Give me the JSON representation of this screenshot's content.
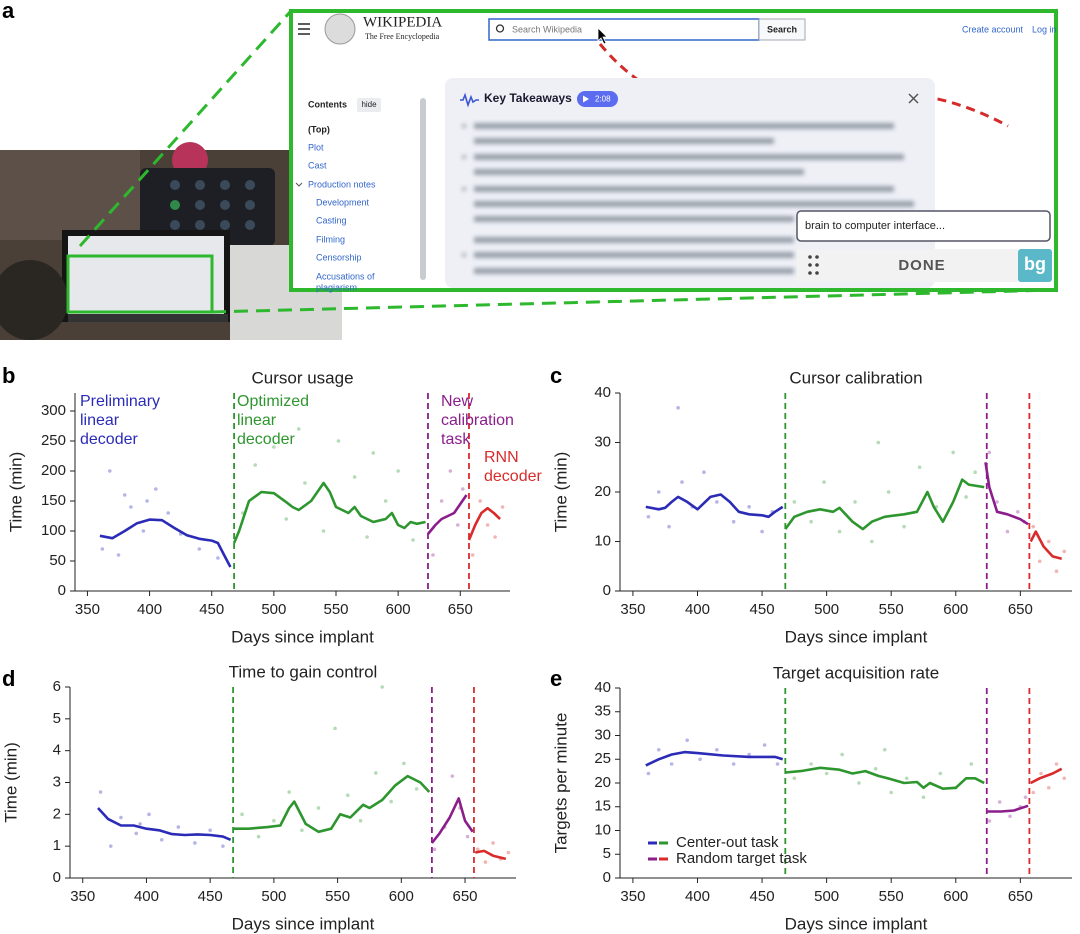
{
  "panel_a": {
    "label": "a",
    "wiki_title": "WIKIPEDIA",
    "wiki_tagline": "The Free Encyclopedia",
    "search_placeholder": "Search Wikipedia",
    "search_button": "Search",
    "create_account": "Create account",
    "log_in": "Log in",
    "contents_title": "Contents",
    "contents_hide": "hide",
    "contents_items": [
      "(Top)",
      "Plot",
      "Cast",
      "Production notes",
      "Development",
      "Casting",
      "Filming",
      "Censorship",
      "Accusations of",
      "plagiarism"
    ],
    "takeaways_title": "Key Takeaways",
    "audio_duration": "2:08",
    "input_text": "brain to computer interface...",
    "done_button": "DONE",
    "extension_badge": "bg"
  },
  "chart_data": [
    {
      "type": "line",
      "panel_label": "b",
      "title": "Cursor usage",
      "x_label": "Days since implant",
      "y_label": "Time (min)",
      "xlim": [
        340,
        690
      ],
      "xticks": [
        350,
        400,
        450,
        500,
        550,
        600,
        650
      ],
      "ylim": [
        0,
        330
      ],
      "yticks": [
        0,
        50,
        100,
        150,
        200,
        250,
        300
      ],
      "vlines": [
        {
          "x": 468,
          "color": "#2e962e"
        },
        {
          "x": 624,
          "color": "#8b1e8b"
        },
        {
          "x": 657,
          "color": "#d92b2b"
        }
      ],
      "annotations": [
        {
          "lines": [
            "Preliminary",
            "linear",
            "decoder"
          ],
          "color": "#2b2bb8"
        },
        {
          "lines": [
            "Optimized",
            "linear",
            "decoder"
          ],
          "color": "#2e962e"
        },
        {
          "lines": [
            "New",
            "calibration",
            "task"
          ],
          "color": "#8b1e8b"
        },
        {
          "lines": [
            "RNN",
            "decoder"
          ],
          "color": "#d92b2b"
        }
      ],
      "series": [
        {
          "color": "#2b2bb8",
          "x": [
            360,
            370,
            380,
            390,
            400,
            410,
            420,
            430,
            440,
            450,
            455,
            460,
            465
          ],
          "values": [
            92,
            88,
            100,
            113,
            119,
            118,
            105,
            93,
            87,
            84,
            80,
            60,
            40
          ]
        },
        {
          "color": "#2e962e",
          "x": [
            468,
            472,
            480,
            490,
            500,
            510,
            515,
            520,
            530,
            540,
            545,
            550,
            560,
            565,
            570,
            580,
            590,
            595,
            600,
            605,
            610,
            615,
            622
          ],
          "values": [
            80,
            100,
            150,
            165,
            163,
            148,
            140,
            135,
            150,
            180,
            165,
            140,
            130,
            140,
            125,
            115,
            120,
            130,
            110,
            105,
            115,
            112,
            115
          ]
        },
        {
          "color": "#8b1e8b",
          "x": [
            624,
            630,
            635,
            640,
            645,
            650,
            655
          ],
          "values": [
            95,
            110,
            120,
            125,
            130,
            145,
            160
          ]
        },
        {
          "color": "#d92b2b",
          "x": [
            657,
            662,
            667,
            672,
            677,
            682
          ],
          "values": [
            85,
            110,
            130,
            138,
            130,
            120
          ]
        }
      ],
      "points": [
        {
          "color": "#2b2bb8",
          "x": [
            362,
            368,
            375,
            380,
            385,
            395,
            398,
            405,
            415,
            425,
            440,
            455
          ],
          "values": [
            70,
            200,
            60,
            160,
            140,
            100,
            150,
            170,
            130,
            95,
            70,
            55
          ]
        },
        {
          "color": "#2e962e",
          "x": [
            475,
            485,
            500,
            510,
            520,
            525,
            540,
            552,
            565,
            575,
            580,
            590,
            600,
            612
          ],
          "values": [
            130,
            210,
            240,
            120,
            270,
            180,
            100,
            250,
            190,
            90,
            230,
            150,
            200,
            85
          ]
        },
        {
          "color": "#8b1e8b",
          "x": [
            628,
            635,
            642,
            648,
            652
          ],
          "values": [
            60,
            150,
            200,
            110,
            170
          ]
        },
        {
          "color": "#d92b2b",
          "x": [
            660,
            666,
            672,
            678,
            684
          ],
          "values": [
            60,
            150,
            110,
            90,
            140
          ]
        }
      ]
    },
    {
      "type": "line",
      "panel_label": "c",
      "title": "Cursor calibration",
      "x_label": "Days since implant",
      "y_label": "Time (min)",
      "xlim": [
        340,
        690
      ],
      "xticks": [
        350,
        400,
        450,
        500,
        550,
        600,
        650
      ],
      "ylim": [
        0,
        40
      ],
      "yticks": [
        0,
        10,
        20,
        30,
        40
      ],
      "vlines": [
        {
          "x": 468,
          "color": "#2e962e"
        },
        {
          "x": 624,
          "color": "#8b1e8b"
        },
        {
          "x": 657,
          "color": "#d92b2b"
        }
      ],
      "series": [
        {
          "color": "#2b2bb8",
          "x": [
            360,
            370,
            375,
            380,
            385,
            392,
            400,
            410,
            418,
            425,
            432,
            440,
            450,
            455,
            460,
            466
          ],
          "values": [
            17,
            16.5,
            16.8,
            18,
            19,
            18,
            16.5,
            19,
            19.5,
            18,
            16,
            15.5,
            15.3,
            15,
            16,
            17
          ]
        },
        {
          "color": "#2e962e",
          "x": [
            468,
            475,
            485,
            495,
            505,
            510,
            520,
            528,
            535,
            545,
            560,
            570,
            578,
            583,
            590,
            598,
            605,
            610,
            622
          ],
          "values": [
            12.5,
            15,
            16,
            16.5,
            16,
            16.8,
            14,
            12.5,
            14,
            15,
            15.5,
            16,
            20,
            17,
            14,
            18,
            22.5,
            21.5,
            21
          ]
        },
        {
          "color": "#8b1e8b",
          "x": [
            623,
            626,
            632,
            640,
            650,
            656
          ],
          "values": [
            26,
            21,
            16,
            15.5,
            14.5,
            13.5
          ]
        },
        {
          "color": "#d92b2b",
          "x": [
            658,
            662,
            668,
            675,
            682
          ],
          "values": [
            10,
            12,
            9,
            7,
            6.5
          ]
        }
      ],
      "points": [
        {
          "color": "#2b2bb8",
          "x": [
            362,
            370,
            378,
            385,
            388,
            396,
            405,
            415,
            428,
            440,
            450,
            458
          ],
          "values": [
            15,
            20,
            13,
            37,
            22,
            17,
            24,
            18,
            14,
            17,
            12,
            16
          ]
        },
        {
          "color": "#2e962e",
          "x": [
            475,
            488,
            498,
            510,
            522,
            535,
            540,
            548,
            560,
            572,
            585,
            598,
            608,
            615
          ],
          "values": [
            18,
            14,
            22,
            12,
            18,
            10,
            30,
            20,
            13,
            25,
            17,
            28,
            19,
            24
          ]
        },
        {
          "color": "#8b1e8b",
          "x": [
            626,
            632,
            640,
            648,
            653
          ],
          "values": [
            28,
            18,
            12,
            16,
            14
          ]
        },
        {
          "color": "#d92b2b",
          "x": [
            660,
            665,
            672,
            678,
            684
          ],
          "values": [
            13,
            6,
            10,
            4,
            8
          ]
        }
      ]
    },
    {
      "type": "line",
      "panel_label": "d",
      "title": "Time to gain control",
      "x_label": "Days since implant",
      "y_label": "Time (min)",
      "xlim": [
        340,
        690
      ],
      "xticks": [
        350,
        400,
        450,
        500,
        550,
        600,
        650
      ],
      "ylim": [
        0,
        6
      ],
      "yticks": [
        0,
        1,
        2,
        3,
        4,
        5,
        6
      ],
      "vlines": [
        {
          "x": 468,
          "color": "#2e962e"
        },
        {
          "x": 624,
          "color": "#8b1e8b"
        },
        {
          "x": 657,
          "color": "#d92b2b"
        }
      ],
      "series": [
        {
          "color": "#2b2bb8",
          "x": [
            362,
            370,
            380,
            390,
            400,
            410,
            420,
            430,
            440,
            450,
            460,
            466
          ],
          "values": [
            2.2,
            1.85,
            1.65,
            1.65,
            1.55,
            1.5,
            1.38,
            1.35,
            1.37,
            1.35,
            1.3,
            1.2
          ]
        },
        {
          "color": "#2e962e",
          "x": [
            468,
            480,
            495,
            505,
            512,
            516,
            525,
            535,
            545,
            552,
            560,
            570,
            575,
            585,
            595,
            605,
            615,
            622
          ],
          "values": [
            1.55,
            1.55,
            1.6,
            1.65,
            2.2,
            2.4,
            1.7,
            1.45,
            1.55,
            2.0,
            1.9,
            2.3,
            2.2,
            2.45,
            2.9,
            3.2,
            3.0,
            2.7
          ]
        },
        {
          "color": "#8b1e8b",
          "x": [
            624,
            630,
            638,
            645,
            650,
            656
          ],
          "values": [
            1.1,
            1.4,
            1.9,
            2.5,
            1.8,
            1.45
          ]
        },
        {
          "color": "#d92b2b",
          "x": [
            658,
            665,
            672,
            682
          ],
          "values": [
            0.8,
            0.85,
            0.7,
            0.6
          ]
        }
      ],
      "points": [
        {
          "color": "#2b2bb8",
          "x": [
            364,
            372,
            380,
            392,
            395,
            402,
            412,
            425,
            438,
            450,
            460
          ],
          "values": [
            2.7,
            1.0,
            1.9,
            1.4,
            1.7,
            2.0,
            1.2,
            1.6,
            1.1,
            1.5,
            1.0
          ]
        },
        {
          "color": "#2e962e",
          "x": [
            475,
            488,
            500,
            512,
            522,
            535,
            548,
            558,
            568,
            580,
            585,
            592,
            602,
            612
          ],
          "values": [
            2.0,
            1.3,
            1.8,
            2.7,
            1.5,
            2.2,
            4.7,
            2.6,
            1.8,
            3.3,
            6.0,
            2.4,
            3.6,
            2.8
          ]
        },
        {
          "color": "#8b1e8b",
          "x": [
            626,
            634,
            640,
            646,
            652
          ],
          "values": [
            0.9,
            1.6,
            3.2,
            2.2,
            1.3
          ]
        },
        {
          "color": "#d92b2b",
          "x": [
            660,
            666,
            672,
            678,
            684
          ],
          "values": [
            0.9,
            0.5,
            1.1,
            0.6,
            0.8
          ]
        }
      ]
    },
    {
      "type": "line",
      "panel_label": "e",
      "title": "Target acquisition rate",
      "x_label": "Days since implant",
      "y_label": "Targets per minute",
      "xlim": [
        340,
        690
      ],
      "xticks": [
        350,
        400,
        450,
        500,
        550,
        600,
        650
      ],
      "ylim": [
        0,
        40
      ],
      "yticks": [
        0,
        5,
        10,
        15,
        20,
        25,
        30,
        35,
        40
      ],
      "vlines": [
        {
          "x": 468,
          "color": "#2e962e"
        },
        {
          "x": 624,
          "color": "#8b1e8b"
        },
        {
          "x": 657,
          "color": "#d92b2b"
        }
      ],
      "legend": [
        {
          "label": "Center-out task",
          "colors": [
            "#2b2bb8",
            "#2e962e"
          ]
        },
        {
          "label": "Random target task",
          "colors": [
            "#8b1e8b",
            "#d92b2b"
          ]
        }
      ],
      "series": [
        {
          "color": "#2b2bb8",
          "x": [
            360,
            370,
            380,
            390,
            400,
            420,
            440,
            460,
            466
          ],
          "values": [
            23.7,
            25,
            26,
            26.5,
            26.3,
            25.8,
            25.5,
            25.5,
            25
          ]
        },
        {
          "color": "#2e962e",
          "x": [
            468,
            480,
            495,
            510,
            520,
            530,
            540,
            550,
            560,
            570,
            575,
            580,
            590,
            600,
            608,
            615,
            622
          ],
          "values": [
            22.2,
            22.5,
            23.2,
            22.8,
            22,
            22.5,
            21.5,
            20.8,
            20,
            20.2,
            19,
            20,
            18.8,
            19,
            21,
            21,
            20
          ]
        },
        {
          "color": "#8b1e8b",
          "x": [
            624,
            635,
            645,
            656
          ],
          "values": [
            14,
            14,
            14.2,
            15.2
          ]
        },
        {
          "color": "#d92b2b",
          "x": [
            658,
            665,
            675,
            682
          ],
          "values": [
            20,
            21,
            22,
            23
          ]
        }
      ],
      "points": [
        {
          "color": "#2b2bb8",
          "x": [
            362,
            370,
            380,
            392,
            402,
            415,
            428,
            440,
            452,
            462
          ],
          "values": [
            22,
            27,
            24,
            29,
            25,
            27,
            24,
            26,
            28,
            24
          ]
        },
        {
          "color": "#2e962e",
          "x": [
            475,
            488,
            500,
            512,
            525,
            538,
            545,
            550,
            562,
            575,
            588,
            600,
            612
          ],
          "values": [
            21,
            24,
            22,
            26,
            20,
            23,
            27,
            18,
            21,
            17,
            22,
            19,
            24
          ]
        },
        {
          "color": "#8b1e8b",
          "x": [
            626,
            634,
            642,
            650,
            654
          ],
          "values": [
            12,
            16,
            13,
            15,
            17
          ]
        },
        {
          "color": "#d92b2b",
          "x": [
            660,
            666,
            672,
            678,
            684
          ],
          "values": [
            18,
            22,
            19,
            24,
            21
          ]
        }
      ]
    }
  ]
}
